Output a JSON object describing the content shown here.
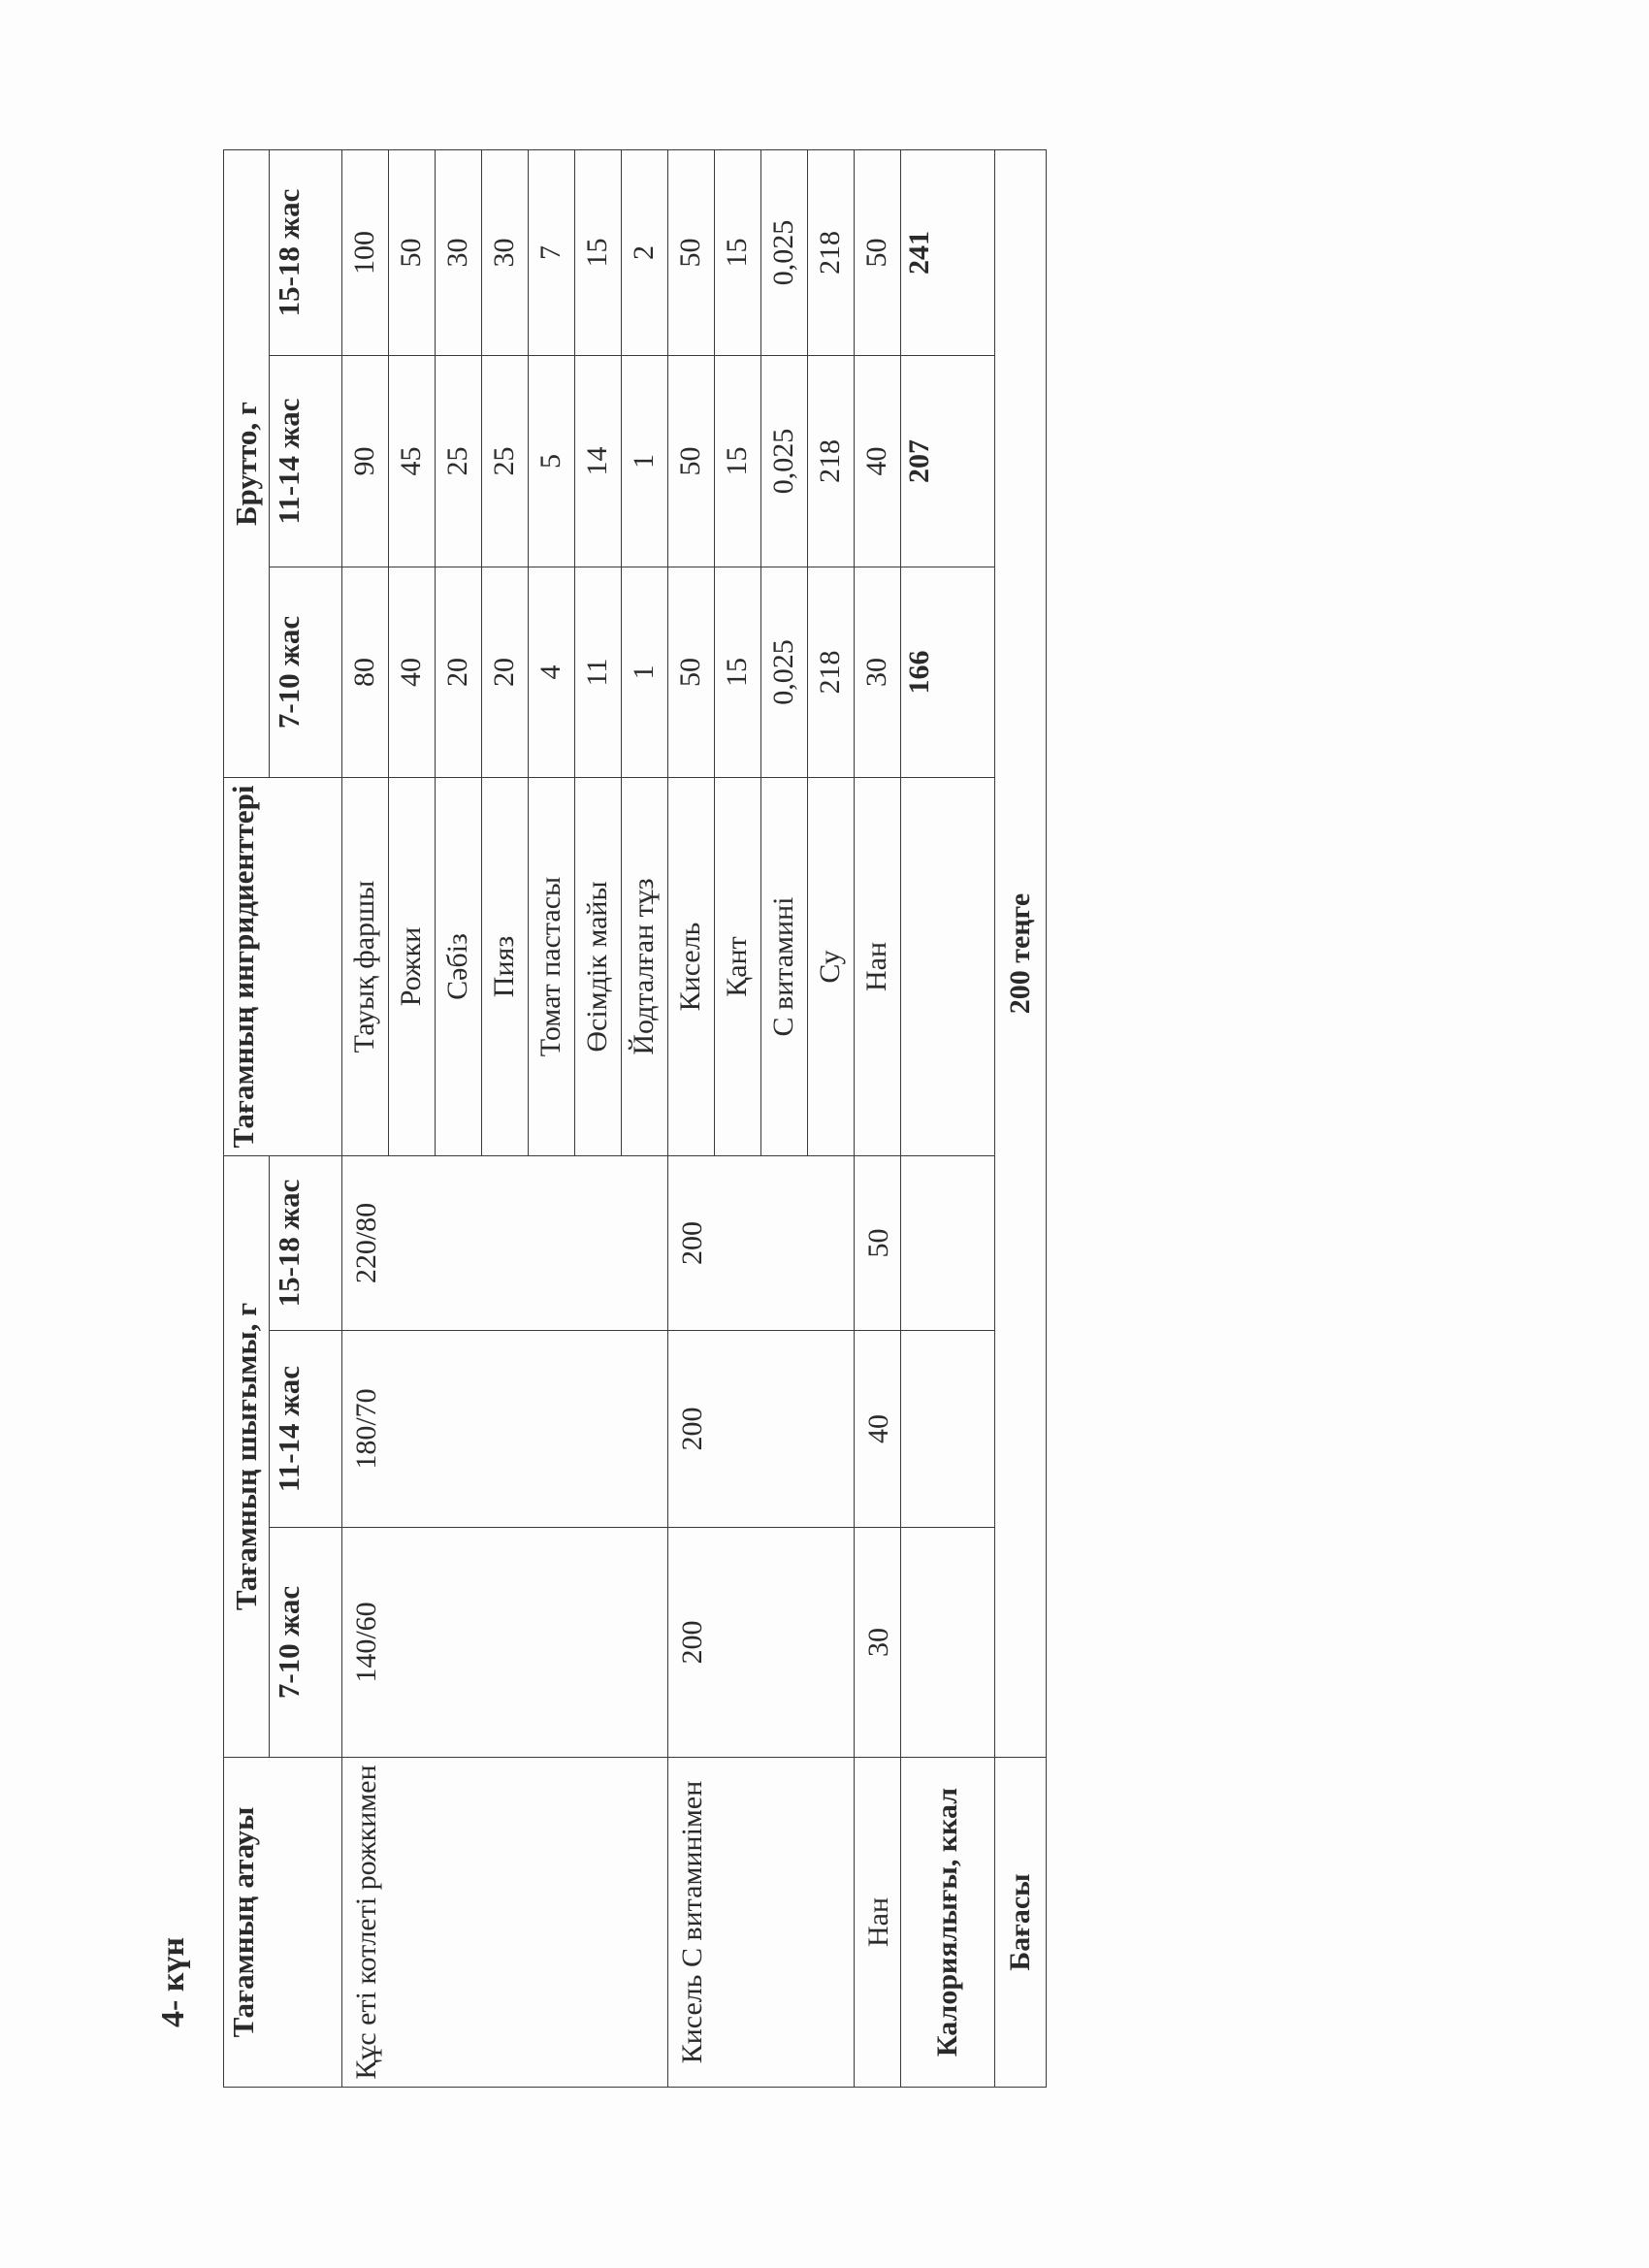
{
  "day_title": "4- күн",
  "headers": {
    "dish_name": "Тағамның атауы",
    "output_group": "Тағамның шығымы, г",
    "ingredients": "Тағамның ингридиенттері",
    "brutto_group": "Брутто, г",
    "ages": [
      "7-10 жас",
      "11-14 жас",
      "15-18 жас"
    ]
  },
  "dishes": [
    {
      "name": "Құс еті котлеті рожкимен",
      "output": [
        "140/60",
        "180/70",
        "220/80"
      ],
      "ingredients": [
        {
          "name": "Тауық фаршы",
          "brutto": [
            "80",
            "90",
            "100"
          ]
        },
        {
          "name": "Рожки",
          "brutto": [
            "40",
            "45",
            "50"
          ]
        },
        {
          "name": "Сәбіз",
          "brutto": [
            "20",
            "25",
            "30"
          ]
        },
        {
          "name": "Пияз",
          "brutto": [
            "20",
            "25",
            "30"
          ]
        },
        {
          "name": "Томат пастасы",
          "brutto": [
            "4",
            "5",
            "7"
          ]
        },
        {
          "name": "Өсімдік майы",
          "brutto": [
            "11",
            "14",
            "15"
          ]
        },
        {
          "name": "Йодталған тұз",
          "brutto": [
            "1",
            "1",
            "2"
          ]
        }
      ]
    },
    {
      "name": "Кисель С витаминімен",
      "output": [
        "200",
        "200",
        "200"
      ],
      "ingredients": [
        {
          "name": "Кисель",
          "brutto": [
            "50",
            "50",
            "50"
          ]
        },
        {
          "name": "Қант",
          "brutto": [
            "15",
            "15",
            "15"
          ]
        },
        {
          "name": "С витамині",
          "brutto": [
            "0,025",
            "0,025",
            "0,025"
          ]
        },
        {
          "name": "Су",
          "brutto": [
            "218",
            "218",
            "218"
          ]
        }
      ]
    },
    {
      "name": "Нан",
      "output": [
        "30",
        "40",
        "50"
      ],
      "ingredients": [
        {
          "name": "Нан",
          "brutto": [
            "30",
            "40",
            "50"
          ]
        }
      ]
    }
  ],
  "calories": {
    "label": "Калориялығы, ккал",
    "values": [
      "166",
      "207",
      "241"
    ]
  },
  "price": {
    "label": "Бағасы",
    "value": "200 теңге"
  }
}
